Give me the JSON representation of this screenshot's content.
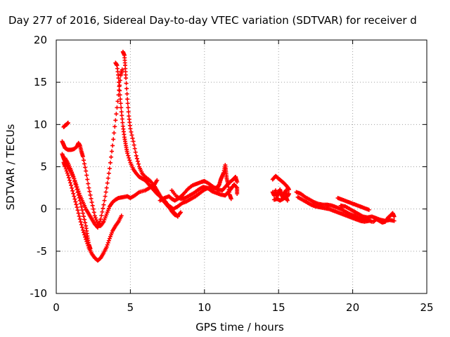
{
  "chart_data": {
    "type": "scatter",
    "title": "Day 277 of 2016, Sidereal Day-to-day VTEC variation (SDTVAR) for receiver d",
    "xlabel": "GPS time / hours",
    "ylabel": "SDTVAR / TECUs",
    "xlim": [
      0,
      25
    ],
    "ylim": [
      -10,
      20
    ],
    "x_ticks": [
      0,
      5,
      10,
      15,
      20,
      25
    ],
    "y_ticks": [
      -10,
      -5,
      0,
      5,
      10,
      15,
      20
    ],
    "grid": true,
    "legend": "none",
    "marker": "plus",
    "color": "#ff0000",
    "series": [
      {
        "points": [
          [
            0.5,
            9.7
          ],
          [
            0.6,
            9.9
          ],
          [
            0.7,
            10.0
          ],
          [
            0.8,
            10.2
          ]
        ]
      },
      {
        "points": [
          [
            0.4,
            8.0
          ],
          [
            0.5,
            7.6
          ],
          [
            0.6,
            7.2
          ],
          [
            0.8,
            7.0
          ],
          [
            1.0,
            7.0
          ],
          [
            1.2,
            7.1
          ],
          [
            1.4,
            7.4
          ],
          [
            1.5,
            7.8
          ],
          [
            1.6,
            7.5
          ],
          [
            1.7,
            6.8
          ],
          [
            1.8,
            6.2
          ],
          [
            2.0,
            4.5
          ],
          [
            2.2,
            2.5
          ],
          [
            2.4,
            0.8
          ],
          [
            2.6,
            -0.8
          ],
          [
            2.8,
            -1.8
          ],
          [
            3.0,
            -2.0
          ],
          [
            3.2,
            -1.5
          ],
          [
            3.4,
            -0.6
          ],
          [
            3.6,
            0.3
          ],
          [
            3.8,
            0.8
          ],
          [
            4.0,
            1.1
          ],
          [
            4.2,
            1.3
          ],
          [
            4.5,
            1.4
          ],
          [
            4.8,
            1.5
          ],
          [
            5.0,
            1.3
          ],
          [
            5.3,
            1.6
          ],
          [
            5.6,
            2.0
          ],
          [
            6.0,
            2.2
          ],
          [
            6.3,
            2.5
          ],
          [
            6.6,
            2.8
          ],
          [
            6.8,
            3.4
          ]
        ]
      },
      {
        "points": [
          [
            0.4,
            6.5
          ],
          [
            0.5,
            6.0
          ],
          [
            0.6,
            5.6
          ],
          [
            0.8,
            5.0
          ],
          [
            1.0,
            4.4
          ],
          [
            1.2,
            3.6
          ],
          [
            1.4,
            2.6
          ],
          [
            1.6,
            1.6
          ],
          [
            1.8,
            0.8
          ],
          [
            2.0,
            0.0
          ],
          [
            2.2,
            -0.6
          ],
          [
            2.4,
            -1.2
          ],
          [
            2.6,
            -1.8
          ],
          [
            2.8,
            -2.2
          ],
          [
            3.0,
            -1.2
          ],
          [
            3.2,
            0.5
          ],
          [
            3.4,
            2.5
          ],
          [
            3.6,
            4.8
          ],
          [
            3.8,
            7.5
          ],
          [
            4.0,
            10.5
          ],
          [
            4.2,
            13.5
          ],
          [
            4.35,
            15.8
          ],
          [
            4.45,
            16.5
          ]
        ]
      },
      {
        "points": [
          [
            4.0,
            17.3
          ],
          [
            4.1,
            17.0
          ],
          [
            4.2,
            15.5
          ],
          [
            4.3,
            13.5
          ],
          [
            4.4,
            11.5
          ],
          [
            4.5,
            9.8
          ],
          [
            4.6,
            8.5
          ],
          [
            4.7,
            7.5
          ],
          [
            4.8,
            6.6
          ],
          [
            5.0,
            5.5
          ],
          [
            5.2,
            4.7
          ],
          [
            5.4,
            4.2
          ],
          [
            5.6,
            3.8
          ],
          [
            5.8,
            3.6
          ],
          [
            6.0,
            3.4
          ],
          [
            6.2,
            3.0
          ],
          [
            6.4,
            2.6
          ],
          [
            6.6,
            2.2
          ],
          [
            6.8,
            1.8
          ],
          [
            7.0,
            1.5
          ],
          [
            7.2,
            1.2
          ],
          [
            7.4,
            0.8
          ],
          [
            7.6,
            0.3
          ],
          [
            7.8,
            -0.3
          ],
          [
            8.0,
            -0.7
          ],
          [
            8.2,
            -0.8
          ],
          [
            8.4,
            -0.4
          ]
        ]
      },
      {
        "points": [
          [
            4.5,
            18.6
          ],
          [
            4.6,
            18.2
          ],
          [
            4.65,
            17.0
          ],
          [
            4.7,
            15.5
          ],
          [
            4.8,
            13.0
          ],
          [
            4.9,
            11.0
          ],
          [
            5.0,
            9.5
          ],
          [
            5.2,
            8.0
          ],
          [
            5.4,
            6.3
          ],
          [
            5.6,
            5.0
          ],
          [
            5.8,
            4.2
          ],
          [
            6.0,
            3.8
          ],
          [
            6.3,
            3.4
          ],
          [
            6.6,
            2.8
          ],
          [
            6.8,
            2.2
          ],
          [
            7.0,
            1.6
          ],
          [
            7.2,
            1.0
          ],
          [
            7.4,
            0.6
          ],
          [
            7.6,
            0.2
          ],
          [
            7.8,
            -0.2
          ],
          [
            8.0,
            -0.5
          ],
          [
            8.2,
            -0.9
          ]
        ]
      },
      {
        "points": [
          [
            0.5,
            5.5
          ],
          [
            0.6,
            5.0
          ],
          [
            0.8,
            4.0
          ],
          [
            1.0,
            2.8
          ],
          [
            1.2,
            1.5
          ],
          [
            1.4,
            0.2
          ],
          [
            1.6,
            -1.2
          ],
          [
            1.8,
            -2.5
          ],
          [
            2.0,
            -3.6
          ],
          [
            2.2,
            -4.6
          ],
          [
            2.4,
            -5.3
          ],
          [
            2.6,
            -5.8
          ],
          [
            2.8,
            -6.1
          ],
          [
            3.0,
            -5.8
          ],
          [
            3.2,
            -5.2
          ],
          [
            3.4,
            -4.5
          ],
          [
            3.6,
            -3.5
          ],
          [
            3.8,
            -2.6
          ],
          [
            4.0,
            -2.0
          ],
          [
            4.2,
            -1.5
          ],
          [
            4.4,
            -0.8
          ]
        ]
      },
      {
        "points": [
          [
            0.6,
            6.0
          ],
          [
            0.8,
            5.4
          ],
          [
            1.0,
            4.6
          ],
          [
            1.2,
            3.6
          ],
          [
            1.4,
            2.3
          ],
          [
            1.6,
            1.0
          ],
          [
            1.8,
            -0.5
          ],
          [
            2.0,
            -2.0
          ],
          [
            2.1,
            -3.2
          ],
          [
            2.2,
            -4.2
          ],
          [
            2.3,
            -4.7
          ]
        ]
      },
      {
        "points": [
          [
            7.0,
            1.0
          ],
          [
            7.3,
            1.3
          ],
          [
            7.6,
            1.5
          ],
          [
            7.8,
            1.2
          ],
          [
            8.0,
            1.0
          ],
          [
            8.3,
            1.3
          ],
          [
            8.6,
            1.8
          ],
          [
            8.9,
            2.4
          ],
          [
            9.2,
            2.8
          ],
          [
            9.5,
            3.0
          ],
          [
            9.8,
            3.2
          ],
          [
            10.0,
            3.3
          ],
          [
            10.3,
            3.0
          ],
          [
            10.6,
            2.6
          ],
          [
            10.9,
            2.3
          ],
          [
            11.2,
            2.2
          ],
          [
            11.4,
            2.6
          ],
          [
            11.6,
            3.0
          ],
          [
            11.8,
            3.3
          ],
          [
            12.0,
            3.6
          ],
          [
            12.1,
            3.8
          ],
          [
            12.2,
            3.2
          ]
        ]
      },
      {
        "points": [
          [
            7.8,
            2.2
          ],
          [
            8.1,
            1.5
          ],
          [
            8.4,
            1.2
          ],
          [
            8.7,
            1.3
          ],
          [
            9.0,
            1.6
          ],
          [
            9.3,
            1.9
          ],
          [
            9.6,
            2.3
          ],
          [
            9.9,
            2.6
          ],
          [
            10.2,
            2.5
          ],
          [
            10.5,
            2.1
          ],
          [
            10.8,
            1.9
          ],
          [
            11.1,
            1.7
          ],
          [
            11.4,
            1.6
          ],
          [
            11.6,
            2.0
          ],
          [
            11.8,
            2.4
          ],
          [
            12.0,
            2.9
          ],
          [
            12.2,
            2.5
          ],
          [
            12.2,
            1.8
          ]
        ]
      },
      {
        "points": [
          [
            7.6,
            0.4
          ],
          [
            7.9,
            0.0
          ],
          [
            8.2,
            0.3
          ],
          [
            8.5,
            0.7
          ],
          [
            8.8,
            0.9
          ],
          [
            9.1,
            1.2
          ],
          [
            9.4,
            1.5
          ],
          [
            9.7,
            1.9
          ],
          [
            10.0,
            2.3
          ],
          [
            10.3,
            2.5
          ],
          [
            10.6,
            2.4
          ],
          [
            10.9,
            2.6
          ],
          [
            11.0,
            2.9
          ],
          [
            11.1,
            3.5
          ],
          [
            11.2,
            3.9
          ],
          [
            11.3,
            4.3
          ],
          [
            11.4,
            5.2
          ],
          [
            11.45,
            4.4
          ],
          [
            11.5,
            3.6
          ],
          [
            11.6,
            2.9
          ],
          [
            11.7,
            1.7
          ],
          [
            11.8,
            1.2
          ]
        ]
      },
      {
        "points": [
          [
            14.6,
            3.5
          ],
          [
            14.8,
            3.9
          ],
          [
            15.0,
            3.6
          ],
          [
            15.2,
            3.3
          ],
          [
            15.4,
            3.0
          ],
          [
            15.6,
            2.6
          ],
          [
            15.7,
            2.3
          ]
        ]
      },
      {
        "points": [
          [
            14.6,
            2.0
          ],
          [
            14.7,
            1.6
          ],
          [
            14.8,
            2.2
          ],
          [
            14.9,
            1.5
          ],
          [
            15.0,
            1.9
          ],
          [
            15.1,
            2.3
          ],
          [
            15.2,
            1.7
          ],
          [
            15.3,
            1.3
          ],
          [
            15.4,
            1.9
          ],
          [
            15.5,
            2.2
          ],
          [
            15.6,
            1.5
          ],
          [
            15.7,
            1.8
          ]
        ]
      },
      {
        "points": [
          [
            14.7,
            1.1
          ],
          [
            14.9,
            1.2
          ],
          [
            15.1,
            1.0
          ],
          [
            15.3,
            1.2
          ],
          [
            15.5,
            1.4
          ],
          [
            15.6,
            1.0
          ]
        ]
      },
      {
        "points": [
          [
            16.2,
            2.0
          ],
          [
            16.5,
            1.8
          ],
          [
            16.8,
            1.4
          ],
          [
            17.1,
            1.1
          ],
          [
            17.4,
            0.8
          ],
          [
            17.7,
            0.6
          ],
          [
            18.0,
            0.5
          ],
          [
            18.3,
            0.5
          ],
          [
            18.6,
            0.4
          ],
          [
            18.9,
            0.2
          ],
          [
            19.2,
            0.0
          ],
          [
            19.5,
            -0.3
          ],
          [
            19.8,
            -0.6
          ],
          [
            20.1,
            -0.8
          ],
          [
            20.4,
            -1.0
          ],
          [
            20.7,
            -1.2
          ],
          [
            21.0,
            -1.3
          ],
          [
            21.3,
            -1.5
          ]
        ]
      },
      {
        "points": [
          [
            16.3,
            1.4
          ],
          [
            16.6,
            1.1
          ],
          [
            16.9,
            0.8
          ],
          [
            17.2,
            0.5
          ],
          [
            17.5,
            0.3
          ],
          [
            17.8,
            0.2
          ],
          [
            18.1,
            0.1
          ],
          [
            18.4,
            0.0
          ],
          [
            18.7,
            -0.2
          ],
          [
            19.0,
            -0.4
          ],
          [
            19.3,
            -0.6
          ],
          [
            19.6,
            -0.8
          ],
          [
            19.9,
            -1.0
          ],
          [
            20.2,
            -1.2
          ],
          [
            20.5,
            -1.4
          ],
          [
            20.8,
            -1.5
          ],
          [
            21.1,
            -1.4
          ]
        ]
      },
      {
        "points": [
          [
            19.0,
            1.3
          ],
          [
            19.3,
            1.1
          ],
          [
            19.6,
            0.9
          ],
          [
            19.9,
            0.7
          ],
          [
            20.2,
            0.5
          ],
          [
            20.5,
            0.3
          ],
          [
            20.8,
            0.1
          ],
          [
            21.1,
            -0.1
          ]
        ]
      },
      {
        "points": [
          [
            19.2,
            0.4
          ],
          [
            19.5,
            0.3
          ],
          [
            19.8,
            0.0
          ],
          [
            20.1,
            -0.3
          ],
          [
            20.4,
            -0.6
          ],
          [
            20.7,
            -0.9
          ],
          [
            21.0,
            -1.0
          ],
          [
            21.3,
            -0.9
          ],
          [
            21.6,
            -1.1
          ],
          [
            21.9,
            -1.3
          ],
          [
            22.2,
            -1.4
          ],
          [
            22.5,
            -1.3
          ],
          [
            22.8,
            -1.4
          ]
        ]
      },
      {
        "points": [
          [
            21.4,
            -1.5
          ],
          [
            21.6,
            -1.2
          ],
          [
            21.8,
            -1.4
          ],
          [
            22.0,
            -1.6
          ],
          [
            22.2,
            -1.5
          ],
          [
            22.4,
            -1.0
          ],
          [
            22.6,
            -0.7
          ],
          [
            22.7,
            -0.5
          ],
          [
            22.8,
            -0.9
          ]
        ]
      }
    ]
  }
}
